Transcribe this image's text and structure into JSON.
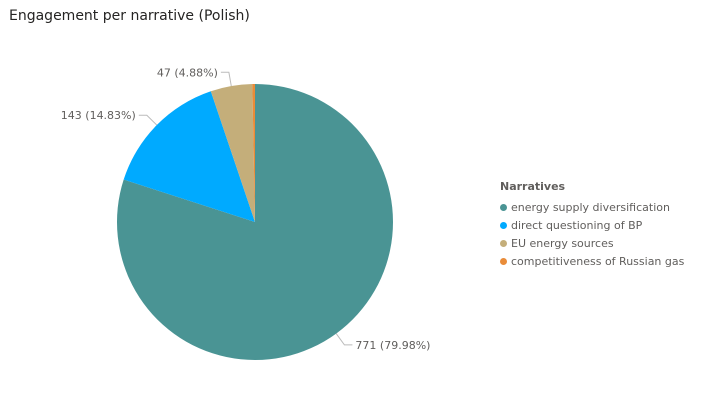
{
  "title": "Engagement per narrative (Polish)",
  "chart_data": {
    "type": "pie",
    "title": "Engagement per narrative (Polish)",
    "legend_title": "Narratives",
    "legend_position": "right",
    "slices": [
      {
        "name": "energy supply diversification",
        "value": 771,
        "percent": "79.98%",
        "label": "771 (79.98%)",
        "color": "#4a9494"
      },
      {
        "name": "direct questioning of BP",
        "value": 143,
        "percent": "14.83%",
        "label": "143 (14.83%)",
        "color": "#00aaff"
      },
      {
        "name": "EU energy sources",
        "value": 47,
        "percent": "4.88%",
        "label": "47 (4.88%)",
        "color": "#c4ae7a"
      },
      {
        "name": "competitiveness of Russian gas",
        "value": 3,
        "percent": "0.31%",
        "label": "",
        "color": "#e98c39"
      }
    ]
  }
}
